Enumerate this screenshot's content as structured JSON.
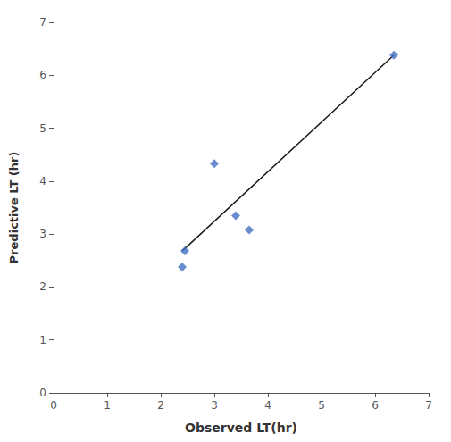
{
  "chart_data": {
    "type": "scatter",
    "xlabel": "Observed LT(hr)",
    "ylabel": "Predictive LT (hr)",
    "series": [
      {
        "type": "scatter",
        "x": [
          2.4,
          2.45,
          3.0,
          3.4,
          3.65,
          6.35
        ],
        "values": [
          2.38,
          2.68,
          4.33,
          3.35,
          3.08,
          6.38
        ],
        "color": "#4472c4",
        "marker": "diamond"
      },
      {
        "type": "line",
        "x": [
          2.4,
          6.35
        ],
        "values": [
          2.68,
          6.38
        ],
        "color": "#1a1a1a"
      }
    ],
    "xlim": [
      0,
      7
    ],
    "ylim": [
      0,
      7
    ],
    "xticks": [
      0,
      1,
      2,
      3,
      4,
      5,
      6,
      7
    ],
    "yticks": [
      0,
      1,
      2,
      3,
      4,
      5,
      6,
      7
    ],
    "grid": false
  }
}
